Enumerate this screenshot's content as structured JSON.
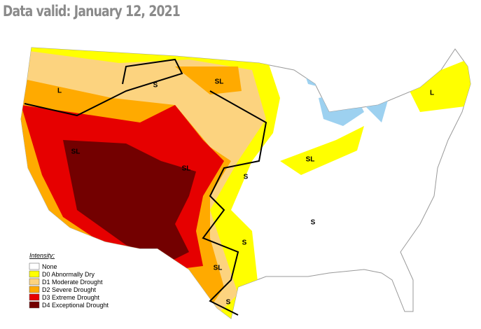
{
  "header": {
    "title": "Data valid: January 12, 2021"
  },
  "legend": {
    "title": "Intensity:",
    "items": [
      {
        "label": "None",
        "color": "#ffffff"
      },
      {
        "label": "D0 Abnormally Dry",
        "color": "#ffff00"
      },
      {
        "label": "D1 Moderate Drought",
        "color": "#fcd37f"
      },
      {
        "label": "D2 Severe Drought",
        "color": "#ffaa00"
      },
      {
        "label": "D3 Extreme Drought",
        "color": "#e60000"
      },
      {
        "label": "D4 Exceptional Drought",
        "color": "#730000"
      }
    ]
  },
  "map_labels": [
    "L",
    "S",
    "SL",
    "L",
    "SL",
    "SL",
    "S",
    "SL",
    "S",
    "S",
    "SL",
    "S"
  ]
}
